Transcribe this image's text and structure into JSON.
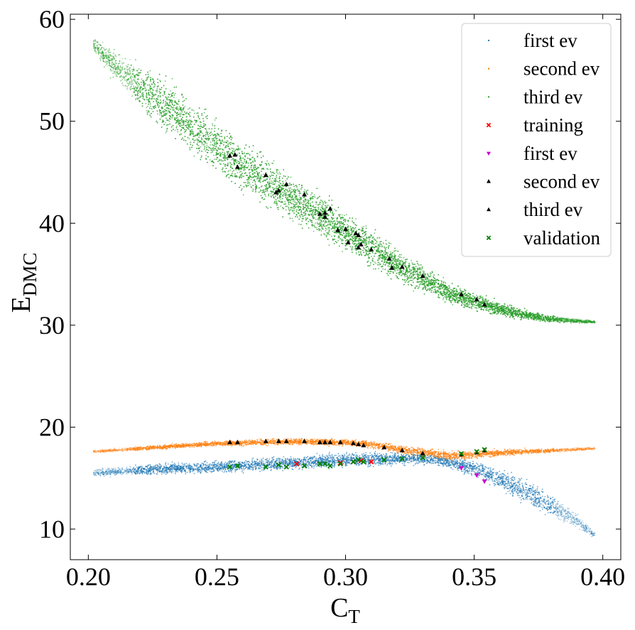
{
  "chart_data": {
    "type": "scatter",
    "title": "",
    "xlabel": "C",
    "xlabel_sub": "T",
    "ylabel": "E",
    "ylabel_sub": "DMC",
    "xlim": [
      0.193,
      0.407
    ],
    "ylim": [
      7,
      60.5
    ],
    "xticks": [
      0.2,
      0.25,
      0.3,
      0.35,
      0.4
    ],
    "xtick_labels": [
      "0.20",
      "0.25",
      "0.30",
      "0.35",
      "0.40"
    ],
    "yticks": [
      10,
      20,
      30,
      40,
      50,
      60
    ],
    "ytick_labels": [
      "10",
      "20",
      "30",
      "40",
      "50",
      "60"
    ],
    "grid": false,
    "legend_position": "top-right",
    "colors": {
      "first_ev": "#1f77b4",
      "second_ev": "#ff7f0e",
      "third_ev": "#2ca02c",
      "training": "#ff0000",
      "first_ev_marker": "#cc00cc",
      "second_ev_marker": "#000000",
      "third_ev_marker": "#000000",
      "validation": "#008000"
    },
    "bands": [
      {
        "name": "first ev",
        "color": "#1f77b4",
        "x": [
          0.202,
          0.22,
          0.25,
          0.28,
          0.3,
          0.32,
          0.33,
          0.34,
          0.35,
          0.36,
          0.37,
          0.38,
          0.39,
          0.397
        ],
        "y": [
          15.5,
          15.8,
          16.1,
          16.5,
          16.8,
          16.9,
          16.9,
          16.6,
          15.9,
          14.9,
          13.7,
          12.3,
          10.8,
          9.4
        ],
        "width": [
          0.5,
          0.7,
          0.9,
          1.0,
          1.0,
          0.9,
          0.8,
          0.9,
          1.2,
          1.6,
          1.8,
          1.6,
          1.0,
          0.5
        ],
        "n_points": 4200
      },
      {
        "name": "second ev",
        "color": "#ff7f0e",
        "x": [
          0.202,
          0.22,
          0.25,
          0.28,
          0.3,
          0.31,
          0.32,
          0.33,
          0.34,
          0.35,
          0.36,
          0.37,
          0.38,
          0.397
        ],
        "y": [
          17.6,
          17.9,
          18.4,
          18.6,
          18.5,
          18.3,
          17.9,
          17.5,
          17.2,
          17.3,
          17.5,
          17.6,
          17.7,
          17.9
        ],
        "width": [
          0.2,
          0.3,
          0.4,
          0.5,
          0.5,
          0.5,
          0.6,
          0.7,
          0.7,
          0.6,
          0.5,
          0.4,
          0.3,
          0.2
        ],
        "n_points": 3800
      },
      {
        "name": "third ev",
        "color": "#2ca02c",
        "x": [
          0.202,
          0.21,
          0.22,
          0.23,
          0.24,
          0.25,
          0.26,
          0.27,
          0.28,
          0.29,
          0.3,
          0.31,
          0.32,
          0.33,
          0.34,
          0.35,
          0.36,
          0.37,
          0.38,
          0.39,
          0.397
        ],
        "y": [
          57.5,
          55.5,
          53.5,
          51.5,
          49.5,
          47.5,
          45.7,
          44.0,
          42.3,
          40.8,
          39.2,
          37.6,
          36.0,
          34.5,
          33.2,
          32.3,
          31.6,
          31.0,
          30.6,
          30.4,
          30.3
        ],
        "width": [
          1.0,
          2.0,
          3.2,
          3.8,
          4.0,
          3.9,
          3.7,
          3.5,
          3.3,
          3.1,
          2.9,
          2.6,
          2.3,
          2.0,
          1.6,
          1.3,
          1.0,
          0.7,
          0.5,
          0.3,
          0.2
        ],
        "n_points": 9000
      }
    ],
    "markers": [
      {
        "name": "training",
        "marker": "x",
        "color": "#ff0000",
        "points": [
          [
            0.281,
            16.4
          ],
          [
            0.298,
            16.5
          ],
          [
            0.31,
            16.6
          ],
          [
            0.306,
            16.7
          ],
          [
            0.303,
            16.6
          ]
        ]
      },
      {
        "name": "first ev",
        "marker": "v",
        "color": "#cc00cc",
        "points": [
          [
            0.345,
            16.0
          ],
          [
            0.351,
            15.3
          ],
          [
            0.354,
            14.7
          ]
        ]
      },
      {
        "name": "second ev",
        "marker": "^",
        "color": "#000000",
        "points": [
          [
            0.255,
            18.5
          ],
          [
            0.258,
            18.5
          ],
          [
            0.269,
            18.6
          ],
          [
            0.274,
            18.6
          ],
          [
            0.277,
            18.6
          ],
          [
            0.284,
            18.6
          ],
          [
            0.29,
            18.5
          ],
          [
            0.292,
            18.5
          ],
          [
            0.294,
            18.5
          ],
          [
            0.298,
            18.5
          ],
          [
            0.303,
            18.4
          ],
          [
            0.305,
            18.3
          ],
          [
            0.307,
            18.2
          ],
          [
            0.315,
            18.0
          ],
          [
            0.322,
            17.7
          ],
          [
            0.33,
            17.4
          ],
          [
            0.345,
            17.3
          ],
          [
            0.351,
            17.5
          ],
          [
            0.354,
            17.7
          ]
        ]
      },
      {
        "name": "third ev",
        "marker": "^",
        "color": "#000000",
        "points": [
          [
            0.255,
            46.6
          ],
          [
            0.257,
            46.7
          ],
          [
            0.258,
            45.5
          ],
          [
            0.269,
            44.7
          ],
          [
            0.273,
            43.0
          ],
          [
            0.274,
            43.2
          ],
          [
            0.277,
            43.8
          ],
          [
            0.284,
            42.8
          ],
          [
            0.29,
            40.9
          ],
          [
            0.292,
            40.6
          ],
          [
            0.292,
            41.0
          ],
          [
            0.294,
            41.4
          ],
          [
            0.297,
            39.3
          ],
          [
            0.3,
            39.4
          ],
          [
            0.301,
            38.1
          ],
          [
            0.304,
            39.0
          ],
          [
            0.305,
            38.8
          ],
          [
            0.305,
            37.6
          ],
          [
            0.306,
            37.9
          ],
          [
            0.31,
            37.4
          ],
          [
            0.317,
            36.5
          ],
          [
            0.318,
            35.6
          ],
          [
            0.322,
            35.7
          ],
          [
            0.33,
            34.8
          ],
          [
            0.345,
            33.0
          ],
          [
            0.351,
            32.5
          ],
          [
            0.354,
            32.0
          ]
        ]
      },
      {
        "name": "validation",
        "marker": "x",
        "color": "#008000",
        "points": [
          [
            0.255,
            16.1
          ],
          [
            0.258,
            16.2
          ],
          [
            0.269,
            16.1
          ],
          [
            0.274,
            16.3
          ],
          [
            0.277,
            16.1
          ],
          [
            0.284,
            16.2
          ],
          [
            0.29,
            16.4
          ],
          [
            0.292,
            16.4
          ],
          [
            0.294,
            16.2
          ],
          [
            0.298,
            16.4
          ],
          [
            0.303,
            16.6
          ],
          [
            0.305,
            16.8
          ],
          [
            0.307,
            16.6
          ],
          [
            0.315,
            16.8
          ],
          [
            0.322,
            16.9
          ],
          [
            0.33,
            17.0
          ],
          [
            0.345,
            17.4
          ],
          [
            0.351,
            17.6
          ],
          [
            0.354,
            17.8
          ]
        ]
      }
    ],
    "legend": [
      {
        "label": "first ev",
        "marker": "dot",
        "color": "#1f77b4"
      },
      {
        "label": "second ev",
        "marker": "dot",
        "color": "#ff7f0e"
      },
      {
        "label": "third ev",
        "marker": "dot",
        "color": "#2ca02c"
      },
      {
        "label": "training",
        "marker": "x",
        "color": "#ff0000"
      },
      {
        "label": "first ev",
        "marker": "v",
        "color": "#cc00cc"
      },
      {
        "label": "second ev",
        "marker": "^",
        "color": "#000000"
      },
      {
        "label": "third ev",
        "marker": "^",
        "color": "#000000"
      },
      {
        "label": "validation",
        "marker": "x",
        "color": "#008000"
      }
    ]
  }
}
